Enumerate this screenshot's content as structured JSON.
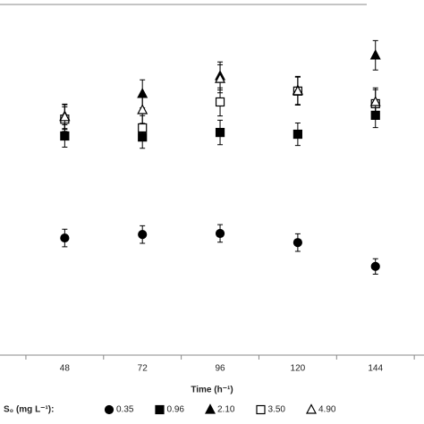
{
  "chart_data": {
    "type": "scatter",
    "x_label": "Time (h⁻¹)",
    "legend_title": "S₀ (mg L⁻¹):",
    "x": [
      48,
      72,
      96,
      120,
      144
    ],
    "xlim": [
      28,
      159
    ],
    "xticks": [
      48,
      72,
      96,
      120,
      144
    ],
    "ylim": [
      0,
      100
    ],
    "series": [
      {
        "name": "0.35",
        "marker": "circle",
        "filled": true,
        "color": "#000000",
        "values": [
          33.4,
          34.4,
          34.7,
          32.1,
          25.3
        ],
        "errors": [
          2.5,
          2.5,
          2.5,
          2.5,
          2.2
        ]
      },
      {
        "name": "0.96",
        "marker": "square",
        "filled": true,
        "color": "#000000",
        "values": [
          62.5,
          62.2,
          63.5,
          63.0,
          68.4
        ],
        "errors": [
          3.2,
          3.2,
          3.5,
          3.2,
          3.5
        ]
      },
      {
        "name": "2.10",
        "marker": "triangle",
        "filled": true,
        "color": "#000000",
        "values": [
          68.1,
          74.5,
          79.6,
          75.5,
          85.5
        ],
        "errors": [
          3.5,
          4.0,
          4.0,
          4.0,
          4.2
        ]
      },
      {
        "name": "3.50",
        "marker": "square",
        "filled": false,
        "color": "#000000",
        "values": [
          67.3,
          64.8,
          72.2,
          75.3,
          71.7
        ],
        "errors": [
          3.5,
          3.5,
          4.0,
          4.0,
          4.0
        ]
      },
      {
        "name": "4.90",
        "marker": "triangle",
        "filled": false,
        "color": "#000000",
        "values": [
          67.9,
          69.9,
          78.8,
          75.3,
          72.2
        ],
        "errors": [
          3.5,
          3.8,
          4.0,
          4.0,
          4.0
        ]
      }
    ]
  }
}
